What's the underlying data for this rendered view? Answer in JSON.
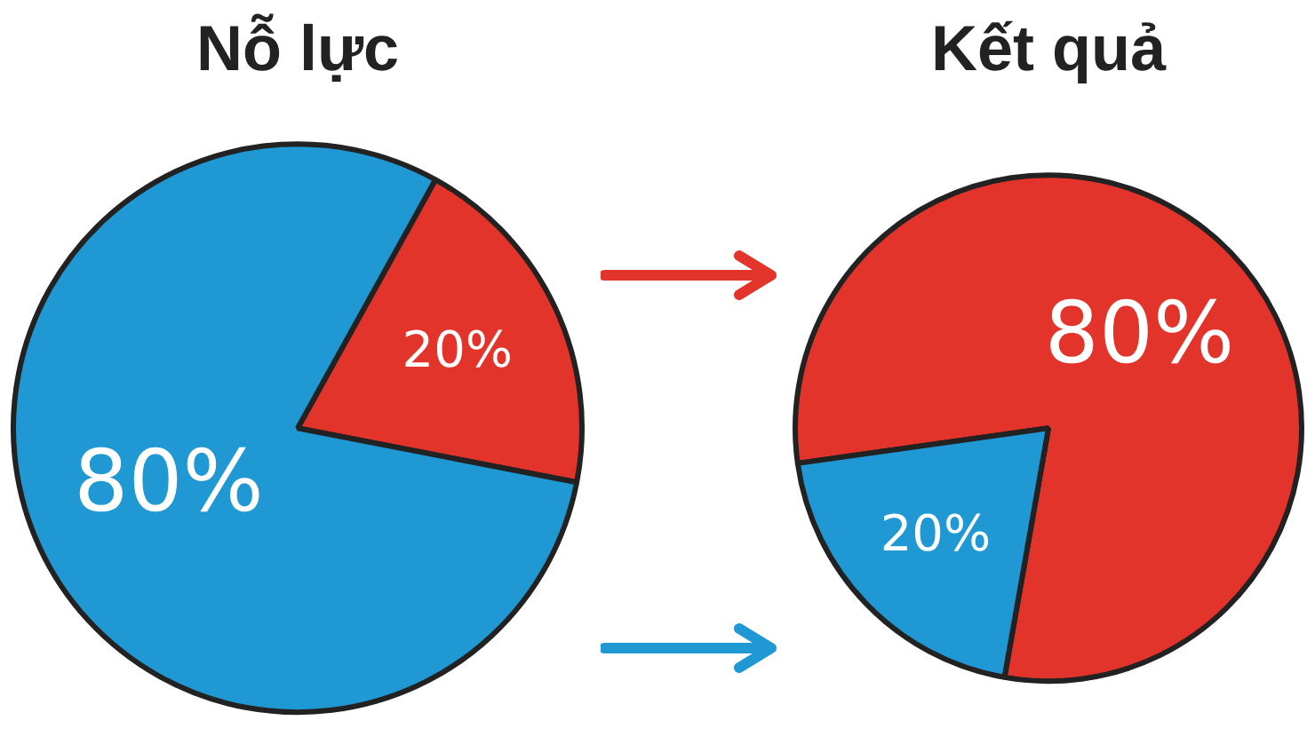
{
  "chart_data": [
    {
      "type": "pie",
      "title": "Nỗ lực",
      "categories": [
        null,
        null
      ],
      "values": [
        20,
        80
      ],
      "colors": [
        "#e3342b",
        "#1f98d3"
      ],
      "value_labels": [
        "20%",
        "80%"
      ]
    },
    {
      "type": "pie",
      "title": "Kết quả",
      "categories": [
        null,
        null
      ],
      "values": [
        80,
        20
      ],
      "colors": [
        "#e3342b",
        "#1f98d3"
      ],
      "value_labels": [
        "80%",
        "20%"
      ]
    }
  ]
}
